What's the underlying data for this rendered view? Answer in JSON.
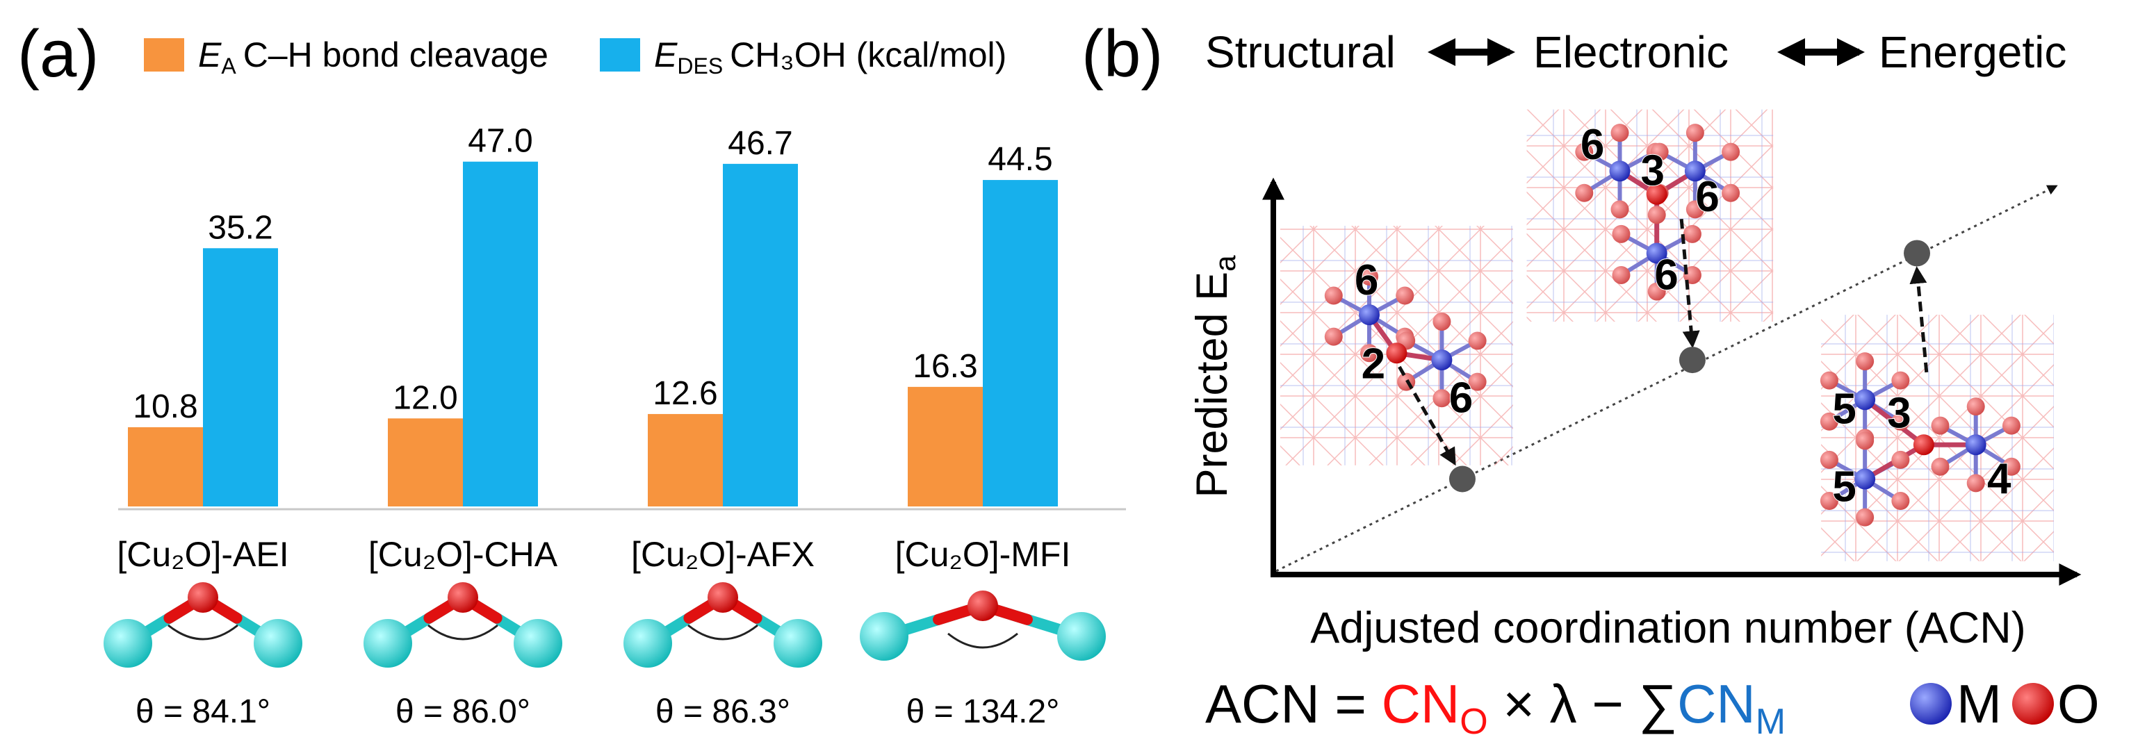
{
  "panel_labels": [
    "(a)",
    "(b)"
  ],
  "chart_data": {
    "type": "bar",
    "categories": [
      "[Cu₂O]-AEI",
      "[Cu₂O]-CHA",
      "[Cu₂O]-AFX",
      "[Cu₂O]-MFI"
    ],
    "series": [
      {
        "symbol": "E",
        "symbol_sub": "A",
        "name": "C–H bond cleavage",
        "color": "#f7943e",
        "values": [
          10.8,
          12.0,
          12.6,
          16.3
        ],
        "value_labels": [
          "10.8",
          "12.0",
          "12.6",
          "16.3"
        ]
      },
      {
        "symbol": "E",
        "symbol_sub": "DES",
        "name": "CH₃OH (kcal/mol)",
        "color": "#17b0ec",
        "values": [
          35.2,
          47.0,
          46.7,
          44.5
        ],
        "value_labels": [
          "35.2",
          "47.0",
          "46.7",
          "44.5"
        ]
      }
    ],
    "annotations": [
      "θ = 84.1°",
      "θ = 86.0°",
      "θ = 86.3°",
      "θ = 134.2°"
    ]
  },
  "panel_b": {
    "title": [
      "Structural",
      "Electronic",
      "Energetic"
    ],
    "y_label": "Predicted E",
    "y_label_sub": "a",
    "x_label": "Adjusted coordination number (ACN)",
    "structures": [
      {
        "labels": [
          "6",
          "2",
          "6"
        ]
      },
      {
        "labels": [
          "6",
          "3",
          "6",
          "6"
        ]
      },
      {
        "labels": [
          "5",
          "3",
          "5",
          "4"
        ]
      }
    ],
    "formula": {
      "lhs": "ACN = ",
      "cn_o": "CN",
      "cn_o_sub": "O",
      "mid": " × λ − ∑",
      "cn_m": "CN",
      "cn_m_sub": "M",
      "legend_m": "M",
      "legend_o": "O"
    }
  }
}
